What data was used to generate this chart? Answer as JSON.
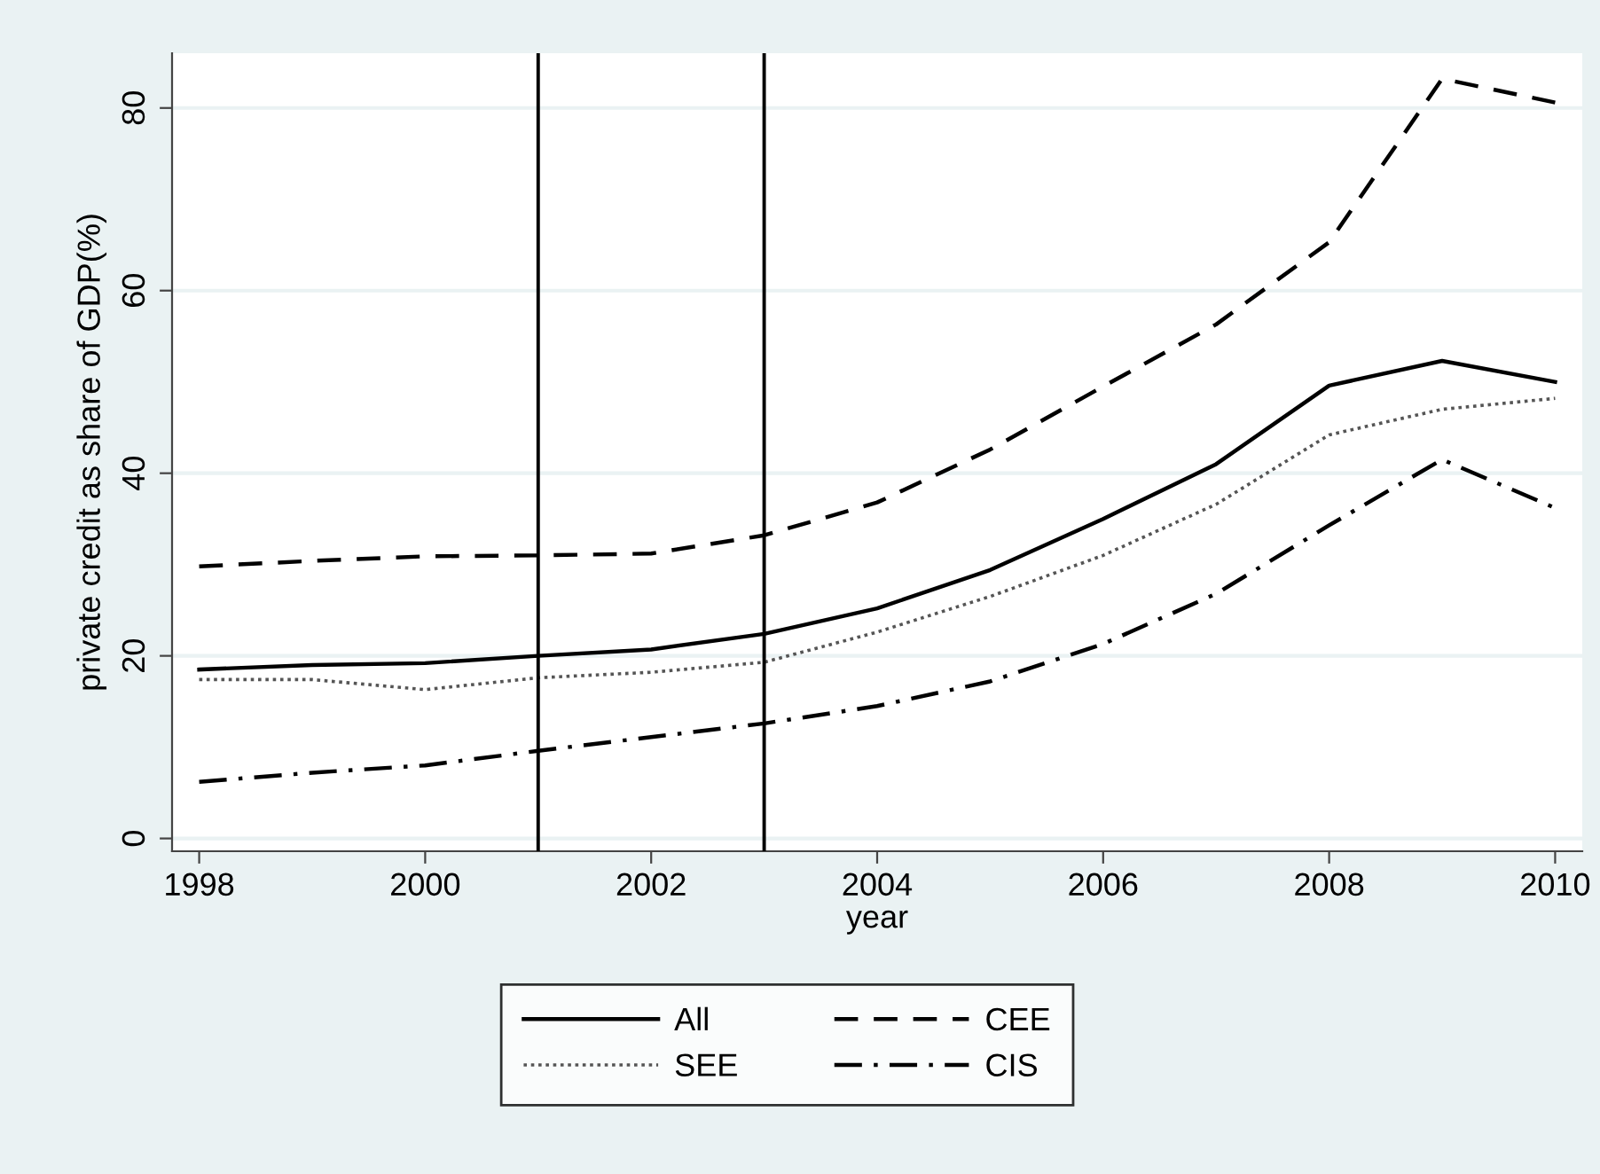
{
  "chart_data": {
    "type": "line",
    "xlabel": "year",
    "ylabel": "private credit as share of GDP(%)",
    "x": [
      1998,
      1999,
      2000,
      2001,
      2002,
      2003,
      2004,
      2005,
      2006,
      2007,
      2008,
      2009,
      2010
    ],
    "series": [
      {
        "name": "All",
        "color": "#000000",
        "line_style": "solid",
        "values": [
          18.5,
          19,
          19.2,
          20,
          20.7,
          22.4,
          25.2,
          29.4,
          35,
          41,
          49.6,
          52.3,
          50
        ]
      },
      {
        "name": "SEE",
        "color": "#555555",
        "line_style": "dotted",
        "values": [
          17.4,
          17.4,
          16.3,
          17.6,
          18.2,
          19.3,
          22.6,
          26.5,
          31,
          36.6,
          44.2,
          47,
          48.2
        ]
      },
      {
        "name": "CEE",
        "color": "#000000",
        "line_style": "dashed",
        "values": [
          29.8,
          30.4,
          30.9,
          31,
          31.2,
          33.2,
          36.8,
          42.6,
          49.5,
          56.3,
          65.3,
          83.2,
          80.6
        ]
      },
      {
        "name": "CIS",
        "color": "#000000",
        "line_style": "dashdot",
        "values": [
          6.2,
          7.2,
          8,
          9.6,
          11.1,
          12.6,
          14.5,
          17.2,
          21.3,
          26.8,
          34.3,
          41.5,
          36.2
        ]
      }
    ],
    "xlim": [
      1997.76,
      2010.24
    ],
    "xticks": [
      1998,
      2000,
      2002,
      2004,
      2006,
      2008,
      2010
    ],
    "ylim": [
      -1.4,
      86
    ],
    "yticks": [
      0,
      20,
      40,
      60,
      80
    ],
    "ref_lines": [
      {
        "axis": "x",
        "value": 2001,
        "color": "#000000"
      },
      {
        "axis": "x",
        "value": 2003,
        "color": "#000000"
      }
    ],
    "grid": "y",
    "legend": "bottom"
  }
}
